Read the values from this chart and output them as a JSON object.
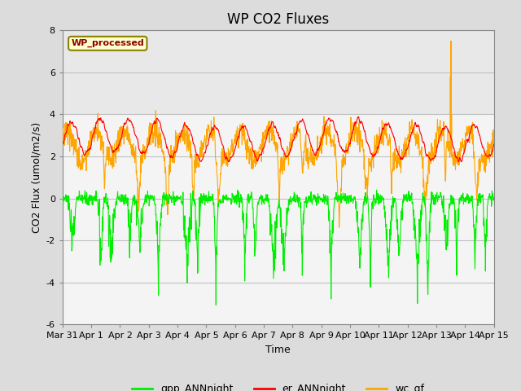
{
  "title": "WP CO2 Fluxes",
  "xlabel": "Time",
  "ylabel": "CO2 Flux (umol/m2/s)",
  "ylim": [
    -6,
    8
  ],
  "yticks": [
    -6,
    -4,
    -2,
    0,
    2,
    4,
    6,
    8
  ],
  "legend_label": "WP_processed",
  "legend_label_color": "#8B0000",
  "legend_box_color": "#FFFFCC",
  "legend_box_edge": "#8B8000",
  "series": {
    "gpp_ANNnight": {
      "color": "#00EE00",
      "linewidth": 0.8
    },
    "er_ANNnight": {
      "color": "#FF0000",
      "linewidth": 0.8
    },
    "wc_gf": {
      "color": "#FFA500",
      "linewidth": 0.8
    }
  },
  "xtick_labels": [
    "Mar 31",
    "Apr 1",
    "Apr 2",
    "Apr 3",
    "Apr 4",
    "Apr 5",
    "Apr 6",
    "Apr 7",
    "Apr 8",
    "Apr 9",
    "Apr 10",
    "Apr 11",
    "Apr 12",
    "Apr 13",
    "Apr 14",
    "Apr 15"
  ],
  "background_color": "#DCDCDC",
  "plot_bg_color": "#FFFFFF",
  "band_color_light": "#F0F0F0",
  "band_color_dark": "#D8D8D8",
  "grid_color": "#C8C8C8",
  "title_fontsize": 12,
  "axis_label_fontsize": 9,
  "tick_fontsize": 8,
  "num_points": 1440,
  "seed": 123
}
